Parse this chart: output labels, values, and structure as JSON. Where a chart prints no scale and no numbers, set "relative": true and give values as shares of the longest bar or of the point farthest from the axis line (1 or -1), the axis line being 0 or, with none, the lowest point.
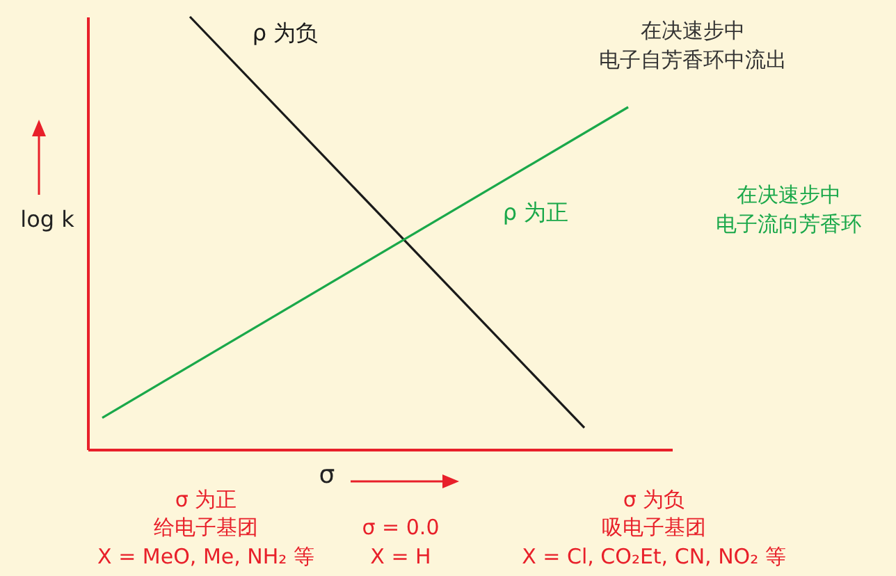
{
  "chart_data": {
    "type": "line",
    "relative": true,
    "ylabel": "log k",
    "xlabel": "σ",
    "categories": [
      null,
      null,
      null,
      null,
      null,
      null,
      null,
      null,
      null,
      null,
      null,
      null,
      null,
      null,
      null,
      null,
      null,
      null,
      null,
      null,
      null,
      null,
      null,
      null,
      null,
      null,
      null,
      null,
      null,
      null,
      null,
      null,
      null,
      null,
      null,
      null,
      null,
      null,
      null,
      null,
      null
    ],
    "series": [
      {
        "name": "ρ 为负",
        "color": "#1a1a1a",
        "values": [
          null,
          null,
          null,
          null,
          null,
          null,
          null,
          1,
          null,
          null,
          null,
          null,
          null,
          null,
          null,
          null,
          null,
          null,
          null,
          null,
          null,
          null,
          null,
          null,
          null,
          null,
          null,
          null,
          null,
          null,
          null,
          null,
          null,
          null,
          0.05,
          null,
          null,
          null,
          null,
          null,
          null
        ]
      },
      {
        "name": "ρ 为正",
        "color": "#1aa84a",
        "values": [
          null,
          0.073,
          null,
          null,
          null,
          null,
          null,
          null,
          null,
          null,
          null,
          null,
          null,
          null,
          null,
          null,
          null,
          null,
          null,
          null,
          null,
          null,
          null,
          null,
          null,
          null,
          null,
          null,
          null,
          null,
          null,
          null,
          null,
          null,
          null,
          null,
          null,
          0.791,
          null,
          null,
          null
        ]
      }
    ],
    "annotations": [
      "在决速步中",
      "电子自芳香环中流出",
      "在决速步中",
      "电子流向芳香环",
      "σ 为正",
      "给电子基团",
      "X = MeO, Me, NH₂ 等",
      "σ = 0.0",
      "X = H",
      "σ 为负",
      "吸电子基团",
      "X = Cl, CO₂Et, CN, NO₂ 等"
    ]
  }
}
